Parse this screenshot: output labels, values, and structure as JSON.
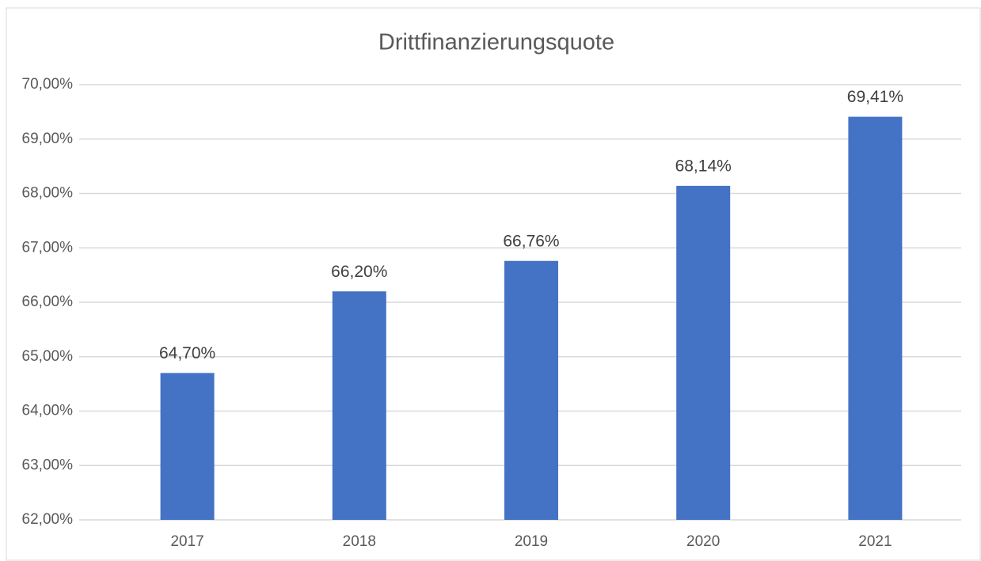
{
  "chart_data": {
    "type": "bar",
    "title": "Drittfinanzierungsquote",
    "categories": [
      "2017",
      "2018",
      "2019",
      "2020",
      "2021"
    ],
    "values": [
      64.7,
      66.2,
      66.76,
      68.14,
      69.41
    ],
    "value_labels": [
      "64,70%",
      "66,20%",
      "66,76%",
      "68,14%",
      "69,41%"
    ],
    "color": "#4472c4",
    "ylim": [
      62,
      70
    ],
    "yticks": [
      {
        "value": 62,
        "label": "62,00%"
      },
      {
        "value": 63,
        "label": "63,00%"
      },
      {
        "value": 64,
        "label": "64,00%"
      },
      {
        "value": 65,
        "label": "65,00%"
      },
      {
        "value": 66,
        "label": "66,00%"
      },
      {
        "value": 67,
        "label": "67,00%"
      },
      {
        "value": 68,
        "label": "68,00%"
      },
      {
        "value": 69,
        "label": "69,00%"
      },
      {
        "value": 70,
        "label": "70,00%"
      }
    ],
    "grid": true
  }
}
